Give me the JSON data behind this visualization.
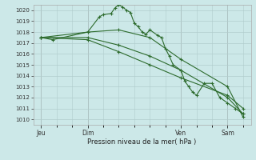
{
  "background_color": "#cce8e8",
  "grid_color": "#b0cccc",
  "line_color": "#2d6b2d",
  "title": "Pression niveau de la mer( hPa )",
  "ylim": [
    1009.5,
    1020.5
  ],
  "yticks": [
    1010,
    1011,
    1012,
    1013,
    1014,
    1015,
    1016,
    1017,
    1018,
    1019,
    1020
  ],
  "xlabel_ticks": [
    "Jeu",
    "Dim",
    "Ven",
    "Sam"
  ],
  "xlabel_tick_positions": [
    0,
    12,
    36,
    48
  ],
  "xlim": [
    -2,
    54
  ],
  "series1_x": [
    0,
    3,
    12,
    15,
    16,
    18,
    19,
    20,
    21,
    22,
    23,
    24,
    25,
    26,
    27,
    28,
    30,
    31,
    32,
    33,
    34,
    36,
    37,
    38,
    39,
    40,
    42,
    44,
    46,
    48,
    50,
    52
  ],
  "series1_y": [
    1017.5,
    1017.3,
    1018.0,
    1019.4,
    1019.6,
    1019.7,
    1020.2,
    1020.5,
    1020.3,
    1020.0,
    1019.8,
    1018.8,
    1018.5,
    1018.0,
    1017.8,
    1018.2,
    1017.7,
    1017.5,
    1016.5,
    1015.8,
    1015.0,
    1014.5,
    1013.5,
    1013.0,
    1012.5,
    1012.2,
    1013.3,
    1013.3,
    1012.0,
    1011.5,
    1011.0,
    1010.5
  ],
  "series2_x": [
    0,
    12,
    20,
    28,
    36,
    48,
    52
  ],
  "series2_y": [
    1017.5,
    1018.0,
    1018.2,
    1017.5,
    1015.5,
    1013.0,
    1010.2
  ],
  "series3_x": [
    0,
    12,
    20,
    28,
    36,
    48,
    52
  ],
  "series3_y": [
    1017.5,
    1017.3,
    1016.2,
    1015.0,
    1013.8,
    1012.2,
    1011.0
  ],
  "series4_x": [
    0,
    12,
    20,
    28,
    36,
    48,
    52
  ],
  "series4_y": [
    1017.5,
    1017.5,
    1016.8,
    1015.8,
    1014.5,
    1012.0,
    1010.5
  ]
}
